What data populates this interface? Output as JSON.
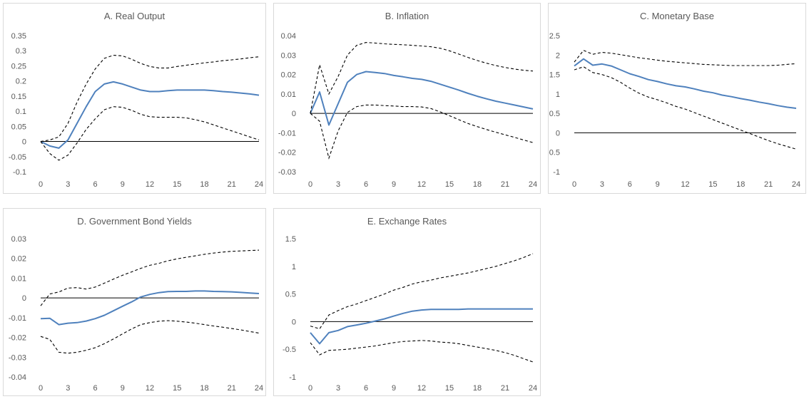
{
  "chart_data": [
    {
      "type": "line",
      "title": "A. Real Output",
      "x": [
        0,
        1,
        2,
        3,
        4,
        5,
        6,
        7,
        8,
        9,
        10,
        11,
        12,
        13,
        14,
        15,
        16,
        17,
        18,
        19,
        20,
        21,
        22,
        23,
        24
      ],
      "xticks": [
        0,
        3,
        6,
        9,
        12,
        15,
        18,
        21,
        24
      ],
      "ylim": [
        -0.1,
        0.35
      ],
      "yticks": [
        -0.1,
        -0.05,
        0,
        0.05,
        0.1,
        0.15,
        0.2,
        0.25,
        0.3,
        0.35
      ],
      "ytick_labels": [
        "-0.1",
        "-0.05",
        "0",
        "0.05",
        "0.1",
        "0.15",
        "0.2",
        "0.25",
        "0.3",
        "0.35"
      ],
      "series": [
        {
          "role": "estimate",
          "values": [
            0,
            -0.015,
            -0.022,
            0.005,
            0.06,
            0.115,
            0.165,
            0.19,
            0.197,
            0.19,
            0.18,
            0.17,
            0.165,
            0.165,
            0.168,
            0.17,
            0.17,
            0.17,
            0.17,
            0.168,
            0.165,
            0.163,
            0.16,
            0.157,
            0.153
          ]
        },
        {
          "role": "upper",
          "values": [
            0,
            0.005,
            0.015,
            0.06,
            0.13,
            0.19,
            0.24,
            0.275,
            0.285,
            0.283,
            0.272,
            0.258,
            0.248,
            0.243,
            0.243,
            0.248,
            0.252,
            0.256,
            0.26,
            0.263,
            0.267,
            0.27,
            0.273,
            0.277,
            0.28
          ]
        },
        {
          "role": "lower",
          "values": [
            0,
            -0.04,
            -0.062,
            -0.045,
            -0.005,
            0.04,
            0.075,
            0.105,
            0.115,
            0.113,
            0.103,
            0.09,
            0.082,
            0.08,
            0.08,
            0.08,
            0.078,
            0.072,
            0.065,
            0.055,
            0.045,
            0.035,
            0.025,
            0.015,
            0.005
          ]
        }
      ]
    },
    {
      "type": "line",
      "title": "B. Inflation",
      "x": [
        0,
        1,
        2,
        3,
        4,
        5,
        6,
        7,
        8,
        9,
        10,
        11,
        12,
        13,
        14,
        15,
        16,
        17,
        18,
        19,
        20,
        21,
        22,
        23,
        24
      ],
      "xticks": [
        0,
        3,
        6,
        9,
        12,
        15,
        18,
        21,
        24
      ],
      "ylim": [
        -0.03,
        0.04
      ],
      "yticks": [
        -0.03,
        -0.02,
        -0.01,
        0,
        0.01,
        0.02,
        0.03,
        0.04
      ],
      "ytick_labels": [
        "-0.03",
        "-0.02",
        "-0.01",
        "0",
        "0.01",
        "0.02",
        "0.03",
        "0.04"
      ],
      "series": [
        {
          "role": "estimate",
          "values": [
            0,
            0.011,
            -0.006,
            0.005,
            0.016,
            0.02,
            0.0215,
            0.021,
            0.0205,
            0.0195,
            0.0188,
            0.018,
            0.0175,
            0.0165,
            0.015,
            0.0135,
            0.012,
            0.0103,
            0.0088,
            0.0075,
            0.0063,
            0.0053,
            0.0043,
            0.0033,
            0.0023
          ]
        },
        {
          "role": "upper",
          "values": [
            0,
            0.025,
            0.01,
            0.019,
            0.03,
            0.035,
            0.0365,
            0.0362,
            0.0358,
            0.0355,
            0.0353,
            0.035,
            0.0347,
            0.0343,
            0.0335,
            0.0322,
            0.0305,
            0.0288,
            0.0272,
            0.0258,
            0.0246,
            0.0236,
            0.0228,
            0.0222,
            0.0218
          ]
        },
        {
          "role": "lower",
          "values": [
            0,
            -0.004,
            -0.023,
            -0.009,
            0.0005,
            0.0035,
            0.0043,
            0.0043,
            0.004,
            0.0038,
            0.0035,
            0.0035,
            0.0033,
            0.0025,
            0.0008,
            -0.0012,
            -0.0032,
            -0.0052,
            -0.0068,
            -0.0083,
            -0.0097,
            -0.011,
            -0.0123,
            -0.0137,
            -0.015
          ]
        }
      ]
    },
    {
      "type": "line",
      "title": "C. Monetary Base",
      "x": [
        0,
        1,
        2,
        3,
        4,
        5,
        6,
        7,
        8,
        9,
        10,
        11,
        12,
        13,
        14,
        15,
        16,
        17,
        18,
        19,
        20,
        21,
        22,
        23,
        24
      ],
      "xticks": [
        0,
        3,
        6,
        9,
        12,
        15,
        18,
        21,
        24
      ],
      "ylim": [
        -1,
        2.5
      ],
      "yticks": [
        -1,
        -0.5,
        0,
        0.5,
        1,
        1.5,
        2,
        2.5
      ],
      "ytick_labels": [
        "-1",
        "-0.5",
        "0",
        "0.5",
        "1",
        "1.5",
        "2",
        "2.5"
      ],
      "series": [
        {
          "role": "estimate",
          "values": [
            1.72,
            1.9,
            1.74,
            1.77,
            1.72,
            1.62,
            1.52,
            1.45,
            1.37,
            1.32,
            1.26,
            1.21,
            1.18,
            1.13,
            1.07,
            1.03,
            0.97,
            0.93,
            0.88,
            0.84,
            0.79,
            0.75,
            0.7,
            0.66,
            0.63
          ]
        },
        {
          "role": "upper",
          "values": [
            1.82,
            2.12,
            2.02,
            2.07,
            2.05,
            2.01,
            1.97,
            1.93,
            1.9,
            1.87,
            1.84,
            1.82,
            1.8,
            1.78,
            1.76,
            1.75,
            1.74,
            1.73,
            1.73,
            1.73,
            1.73,
            1.73,
            1.74,
            1.76,
            1.78
          ]
        },
        {
          "role": "lower",
          "values": [
            1.62,
            1.7,
            1.55,
            1.5,
            1.42,
            1.3,
            1.15,
            1.02,
            0.92,
            0.85,
            0.77,
            0.68,
            0.61,
            0.52,
            0.43,
            0.34,
            0.25,
            0.16,
            0.07,
            -0.02,
            -0.11,
            -0.2,
            -0.28,
            -0.35,
            -0.42
          ]
        }
      ]
    },
    {
      "type": "line",
      "title": "D. Government Bond Yields",
      "x": [
        0,
        1,
        2,
        3,
        4,
        5,
        6,
        7,
        8,
        9,
        10,
        11,
        12,
        13,
        14,
        15,
        16,
        17,
        18,
        19,
        20,
        21,
        22,
        23,
        24
      ],
      "xticks": [
        0,
        3,
        6,
        9,
        12,
        15,
        18,
        21,
        24
      ],
      "ylim": [
        -0.04,
        0.03
      ],
      "yticks": [
        -0.04,
        -0.03,
        -0.02,
        -0.01,
        0,
        0.01,
        0.02,
        0.03
      ],
      "ytick_labels": [
        "-0.04",
        "-0.03",
        "-0.02",
        "-0.01",
        "0",
        "0.01",
        "0.02",
        "0.03"
      ],
      "series": [
        {
          "role": "estimate",
          "values": [
            -0.0105,
            -0.0103,
            -0.0135,
            -0.0128,
            -0.0125,
            -0.0117,
            -0.0105,
            -0.0088,
            -0.0065,
            -0.0042,
            -0.002,
            0.0005,
            0.0018,
            0.0027,
            0.0032,
            0.0033,
            0.0033,
            0.0035,
            0.0035,
            0.0033,
            0.0032,
            0.0031,
            0.0028,
            0.0025,
            0.0022
          ]
        },
        {
          "role": "upper",
          "values": [
            -0.004,
            0.002,
            0.003,
            0.005,
            0.0052,
            0.0045,
            0.0055,
            0.0075,
            0.0095,
            0.0115,
            0.0132,
            0.015,
            0.0165,
            0.0175,
            0.0188,
            0.0198,
            0.0206,
            0.0213,
            0.0221,
            0.0227,
            0.0232,
            0.0236,
            0.0238,
            0.024,
            0.0242
          ]
        },
        {
          "role": "lower",
          "values": [
            -0.0195,
            -0.021,
            -0.0275,
            -0.028,
            -0.0275,
            -0.0265,
            -0.0252,
            -0.0232,
            -0.0208,
            -0.0182,
            -0.0157,
            -0.0135,
            -0.0125,
            -0.0118,
            -0.0115,
            -0.0118,
            -0.0122,
            -0.0128,
            -0.0135,
            -0.0142,
            -0.0148,
            -0.0155,
            -0.0162,
            -0.017,
            -0.0178
          ]
        }
      ]
    },
    {
      "type": "line",
      "title": "E. Exchange Rates",
      "x": [
        0,
        1,
        2,
        3,
        4,
        5,
        6,
        7,
        8,
        9,
        10,
        11,
        12,
        13,
        14,
        15,
        16,
        17,
        18,
        19,
        20,
        21,
        22,
        23,
        24
      ],
      "xticks": [
        0,
        3,
        6,
        9,
        12,
        15,
        18,
        21,
        24
      ],
      "ylim": [
        -1,
        1.5
      ],
      "yticks": [
        -1,
        -0.5,
        0,
        0.5,
        1,
        1.5
      ],
      "ytick_labels": [
        "-1",
        "-0.5",
        "0",
        "0.5",
        "1",
        "1.5"
      ],
      "series": [
        {
          "role": "estimate",
          "values": [
            -0.2,
            -0.4,
            -0.2,
            -0.16,
            -0.09,
            -0.06,
            -0.03,
            0.01,
            0.05,
            0.1,
            0.15,
            0.19,
            0.21,
            0.22,
            0.22,
            0.22,
            0.22,
            0.23,
            0.23,
            0.23,
            0.23,
            0.23,
            0.23,
            0.23,
            0.23
          ]
        },
        {
          "role": "upper",
          "values": [
            -0.08,
            -0.13,
            0.12,
            0.2,
            0.27,
            0.32,
            0.38,
            0.44,
            0.5,
            0.57,
            0.62,
            0.68,
            0.72,
            0.75,
            0.79,
            0.82,
            0.85,
            0.88,
            0.92,
            0.96,
            1.0,
            1.05,
            1.1,
            1.16,
            1.23
          ]
        },
        {
          "role": "lower",
          "values": [
            -0.38,
            -0.6,
            -0.52,
            -0.51,
            -0.5,
            -0.48,
            -0.46,
            -0.44,
            -0.41,
            -0.38,
            -0.36,
            -0.35,
            -0.34,
            -0.35,
            -0.37,
            -0.38,
            -0.4,
            -0.43,
            -0.46,
            -0.49,
            -0.52,
            -0.56,
            -0.61,
            -0.67,
            -0.73
          ]
        }
      ]
    }
  ]
}
